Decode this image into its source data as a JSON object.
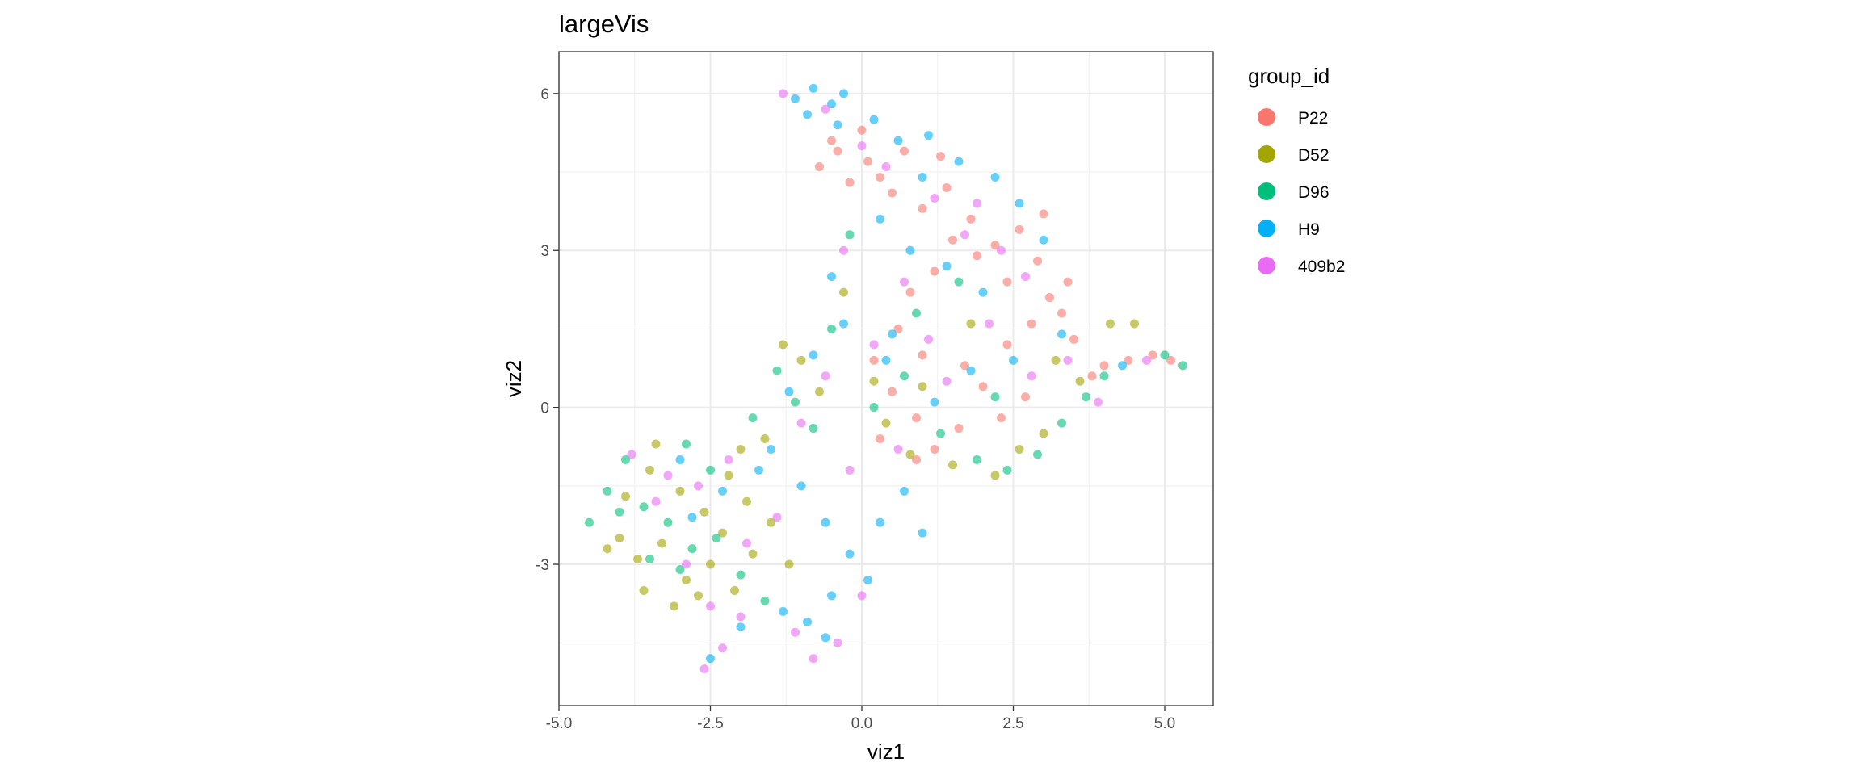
{
  "chart_data": {
    "type": "scatter",
    "title": "largeVis",
    "xlabel": "viz1",
    "ylabel": "viz2",
    "xlim": [
      -5.0,
      5.8
    ],
    "ylim": [
      -5.7,
      6.8
    ],
    "x_ticks": [
      -5.0,
      -2.5,
      0.0,
      2.5,
      5.0
    ],
    "x_tick_labels": [
      "-5.0",
      "-2.5",
      "0.0",
      "2.5",
      "5.0"
    ],
    "y_ticks": [
      -3,
      0,
      3,
      6
    ],
    "y_tick_labels": [
      "-3",
      "0",
      "3",
      "6"
    ],
    "grid": true,
    "legend": {
      "title": "group_id",
      "placement": "right"
    },
    "series": [
      {
        "name": "P22",
        "color": "#F8766D",
        "points": [
          [
            -0.7,
            4.6
          ],
          [
            -0.4,
            4.9
          ],
          [
            -0.2,
            4.3
          ],
          [
            0.1,
            4.7
          ],
          [
            0.3,
            4.4
          ],
          [
            -0.5,
            5.1
          ],
          [
            0.0,
            5.3
          ],
          [
            0.5,
            4.1
          ],
          [
            1.0,
            3.8
          ],
          [
            1.4,
            4.2
          ],
          [
            1.8,
            3.6
          ],
          [
            2.2,
            3.1
          ],
          [
            2.6,
            3.4
          ],
          [
            2.9,
            2.8
          ],
          [
            3.1,
            2.1
          ],
          [
            3.3,
            1.8
          ],
          [
            3.5,
            1.3
          ],
          [
            2.8,
            1.6
          ],
          [
            2.4,
            2.4
          ],
          [
            1.9,
            2.9
          ],
          [
            1.5,
            3.2
          ],
          [
            1.2,
            2.6
          ],
          [
            0.8,
            2.2
          ],
          [
            2.0,
            0.4
          ],
          [
            1.6,
            -0.4
          ],
          [
            1.2,
            -0.8
          ],
          [
            0.9,
            -0.2
          ],
          [
            0.5,
            0.3
          ],
          [
            0.3,
            -0.6
          ],
          [
            2.3,
            -0.2
          ],
          [
            2.7,
            0.2
          ],
          [
            0.2,
            0.9
          ],
          [
            0.6,
            1.5
          ],
          [
            1.0,
            1.0
          ],
          [
            4.0,
            0.8
          ],
          [
            4.4,
            0.9
          ],
          [
            4.8,
            1.0
          ],
          [
            5.1,
            0.9
          ],
          [
            3.8,
            0.6
          ],
          [
            3.0,
            3.7
          ],
          [
            0.7,
            4.9
          ],
          [
            1.3,
            4.8
          ],
          [
            1.7,
            0.8
          ],
          [
            2.4,
            1.2
          ],
          [
            3.4,
            2.4
          ],
          [
            0.9,
            -1.0
          ]
        ]
      },
      {
        "name": "D52",
        "color": "#A3A500",
        "points": [
          [
            -4.0,
            -2.5
          ],
          [
            -3.7,
            -2.9
          ],
          [
            -3.3,
            -2.6
          ],
          [
            -2.9,
            -3.3
          ],
          [
            -2.5,
            -3.0
          ],
          [
            -2.1,
            -3.5
          ],
          [
            -1.8,
            -2.8
          ],
          [
            -3.9,
            -1.7
          ],
          [
            -3.5,
            -1.2
          ],
          [
            -3.0,
            -1.6
          ],
          [
            -2.6,
            -2.0
          ],
          [
            -2.3,
            -2.4
          ],
          [
            -1.9,
            -1.8
          ],
          [
            -1.5,
            -2.2
          ],
          [
            -1.2,
            -3.0
          ],
          [
            -4.2,
            -2.7
          ],
          [
            -3.6,
            -3.5
          ],
          [
            -3.1,
            -3.8
          ],
          [
            -2.7,
            -3.6
          ],
          [
            -1.3,
            1.2
          ],
          [
            -1.0,
            0.9
          ],
          [
            -0.7,
            0.3
          ],
          [
            -1.6,
            -0.6
          ],
          [
            0.4,
            -0.3
          ],
          [
            0.8,
            -0.9
          ],
          [
            1.5,
            -1.1
          ],
          [
            2.2,
            -1.3
          ],
          [
            2.6,
            -0.8
          ],
          [
            3.0,
            -0.5
          ],
          [
            3.6,
            0.5
          ],
          [
            4.1,
            1.6
          ],
          [
            4.5,
            1.6
          ],
          [
            0.2,
            0.5
          ],
          [
            1.0,
            0.4
          ],
          [
            1.8,
            1.6
          ],
          [
            3.2,
            0.9
          ],
          [
            -2.0,
            -0.8
          ],
          [
            -0.3,
            2.2
          ],
          [
            -3.4,
            -0.7
          ],
          [
            -2.2,
            -1.3
          ]
        ]
      },
      {
        "name": "D96",
        "color": "#00BF7D",
        "points": [
          [
            -4.5,
            -2.2
          ],
          [
            -4.2,
            -1.6
          ],
          [
            -3.9,
            -1.0
          ],
          [
            -3.6,
            -1.9
          ],
          [
            -3.2,
            -2.2
          ],
          [
            -2.8,
            -2.7
          ],
          [
            -2.4,
            -2.5
          ],
          [
            -2.0,
            -3.2
          ],
          [
            -1.6,
            -3.7
          ],
          [
            -3.5,
            -2.9
          ],
          [
            -3.0,
            -3.1
          ],
          [
            -1.4,
            0.7
          ],
          [
            -1.1,
            0.1
          ],
          [
            -0.8,
            -0.4
          ],
          [
            -1.8,
            -0.2
          ],
          [
            0.2,
            0.0
          ],
          [
            0.7,
            0.6
          ],
          [
            1.3,
            -0.5
          ],
          [
            1.9,
            -1.0
          ],
          [
            2.4,
            -1.2
          ],
          [
            2.9,
            -0.9
          ],
          [
            3.3,
            -0.3
          ],
          [
            3.7,
            0.2
          ],
          [
            4.0,
            0.6
          ],
          [
            5.3,
            0.8
          ],
          [
            5.0,
            1.0
          ],
          [
            0.9,
            1.8
          ],
          [
            1.6,
            2.4
          ],
          [
            -0.5,
            1.5
          ],
          [
            -0.2,
            3.3
          ],
          [
            2.2,
            0.2
          ],
          [
            -2.5,
            -1.2
          ],
          [
            -4.0,
            -2.0
          ],
          [
            -2.9,
            -0.7
          ]
        ]
      },
      {
        "name": "H9",
        "color": "#00B0F6",
        "points": [
          [
            -1.1,
            5.9
          ],
          [
            -0.8,
            6.1
          ],
          [
            -0.5,
            5.8
          ],
          [
            -0.3,
            6.0
          ],
          [
            -0.9,
            5.6
          ],
          [
            -0.4,
            5.4
          ],
          [
            0.2,
            5.5
          ],
          [
            0.6,
            5.1
          ],
          [
            1.1,
            5.2
          ],
          [
            1.6,
            4.7
          ],
          [
            2.2,
            4.4
          ],
          [
            2.6,
            3.9
          ],
          [
            3.0,
            3.2
          ],
          [
            0.3,
            3.6
          ],
          [
            0.8,
            3.0
          ],
          [
            1.4,
            2.7
          ],
          [
            2.0,
            2.2
          ],
          [
            -0.5,
            2.5
          ],
          [
            -0.3,
            1.6
          ],
          [
            -0.8,
            1.0
          ],
          [
            -1.2,
            0.3
          ],
          [
            -1.5,
            -0.8
          ],
          [
            -1.0,
            -1.5
          ],
          [
            -0.6,
            -2.2
          ],
          [
            -0.2,
            -2.8
          ],
          [
            0.1,
            -3.3
          ],
          [
            0.3,
            -2.2
          ],
          [
            0.7,
            -1.6
          ],
          [
            1.0,
            -2.4
          ],
          [
            -0.5,
            -3.6
          ],
          [
            -0.9,
            -4.1
          ],
          [
            -1.3,
            -3.9
          ],
          [
            -2.0,
            -4.2
          ],
          [
            -2.5,
            -4.8
          ],
          [
            -0.6,
            -4.4
          ],
          [
            0.4,
            0.9
          ],
          [
            1.2,
            0.1
          ],
          [
            1.8,
            0.7
          ],
          [
            2.5,
            0.9
          ],
          [
            3.3,
            1.4
          ],
          [
            4.3,
            0.8
          ],
          [
            -2.8,
            -2.1
          ],
          [
            -2.3,
            -1.6
          ],
          [
            -3.0,
            -1.0
          ],
          [
            -1.7,
            -1.2
          ],
          [
            0.5,
            1.4
          ],
          [
            1.0,
            4.4
          ]
        ]
      },
      {
        "name": "409b2",
        "color": "#E76BF3",
        "points": [
          [
            -1.3,
            6.0
          ],
          [
            -0.6,
            5.7
          ],
          [
            0.0,
            5.0
          ],
          [
            0.4,
            4.6
          ],
          [
            1.2,
            4.0
          ],
          [
            1.7,
            3.3
          ],
          [
            2.3,
            3.0
          ],
          [
            2.7,
            2.5
          ],
          [
            2.1,
            1.6
          ],
          [
            1.1,
            1.3
          ],
          [
            0.2,
            1.2
          ],
          [
            -0.6,
            0.6
          ],
          [
            -1.0,
            -0.3
          ],
          [
            -2.2,
            -1.0
          ],
          [
            -2.7,
            -1.5
          ],
          [
            -3.2,
            -1.3
          ],
          [
            -3.8,
            -0.9
          ],
          [
            -3.4,
            -1.8
          ],
          [
            -2.9,
            -3.0
          ],
          [
            -2.5,
            -3.8
          ],
          [
            -2.0,
            -4.0
          ],
          [
            -2.6,
            -5.0
          ],
          [
            -2.3,
            -4.6
          ],
          [
            -0.8,
            -4.8
          ],
          [
            -0.4,
            -4.5
          ],
          [
            -1.1,
            -4.3
          ],
          [
            0.0,
            -3.6
          ],
          [
            -0.2,
            -1.2
          ],
          [
            0.6,
            -0.8
          ],
          [
            1.4,
            0.5
          ],
          [
            2.8,
            0.6
          ],
          [
            3.4,
            0.9
          ],
          [
            4.7,
            0.9
          ],
          [
            3.9,
            0.1
          ],
          [
            -0.3,
            3.0
          ],
          [
            0.7,
            2.4
          ],
          [
            1.9,
            3.9
          ],
          [
            -1.9,
            -2.6
          ],
          [
            -1.4,
            -2.1
          ]
        ]
      }
    ]
  }
}
